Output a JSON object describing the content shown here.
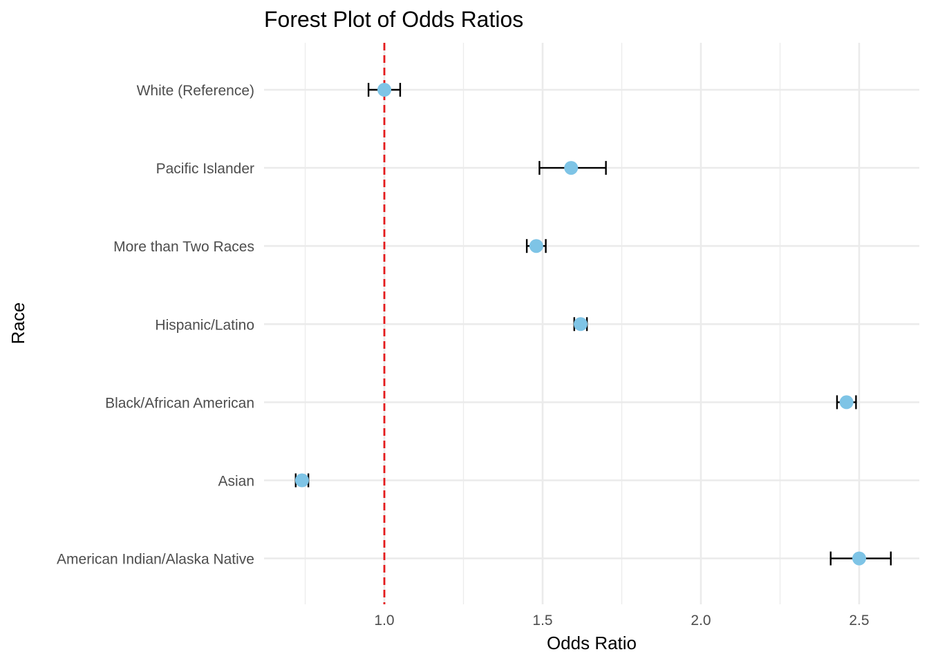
{
  "chart_data": {
    "type": "scatter",
    "subtype": "forest-plot",
    "title": "Forest Plot of Odds Ratios",
    "xlabel": "Odds Ratio",
    "ylabel": "Race",
    "xlim": [
      0.62,
      2.69
    ],
    "x_ticks": [
      1.0,
      1.5,
      2.0,
      2.5
    ],
    "x_tick_labels": [
      "1.0",
      "1.5",
      "2.0",
      "2.5"
    ],
    "x_minor_ticks": [
      0.75,
      1.25,
      1.75,
      2.25
    ],
    "reference_line": {
      "x": 1.0,
      "color": "#e41a1c",
      "style": "dashed"
    },
    "grid": true,
    "point_color": "#7ec4e6",
    "errorbar_color": "#000000",
    "categories": [
      "White (Reference)",
      "Pacific Islander",
      "More than Two Races",
      "Hispanic/Latino",
      "Black/African American",
      "Asian",
      "American Indian/Alaska Native"
    ],
    "odds_ratio": [
      1.0,
      1.59,
      1.48,
      1.62,
      2.46,
      0.74,
      2.5
    ],
    "ci_lower": [
      0.95,
      1.49,
      1.45,
      1.6,
      2.43,
      0.72,
      2.41
    ],
    "ci_upper": [
      1.05,
      1.7,
      1.51,
      1.64,
      2.49,
      0.76,
      2.6
    ]
  }
}
